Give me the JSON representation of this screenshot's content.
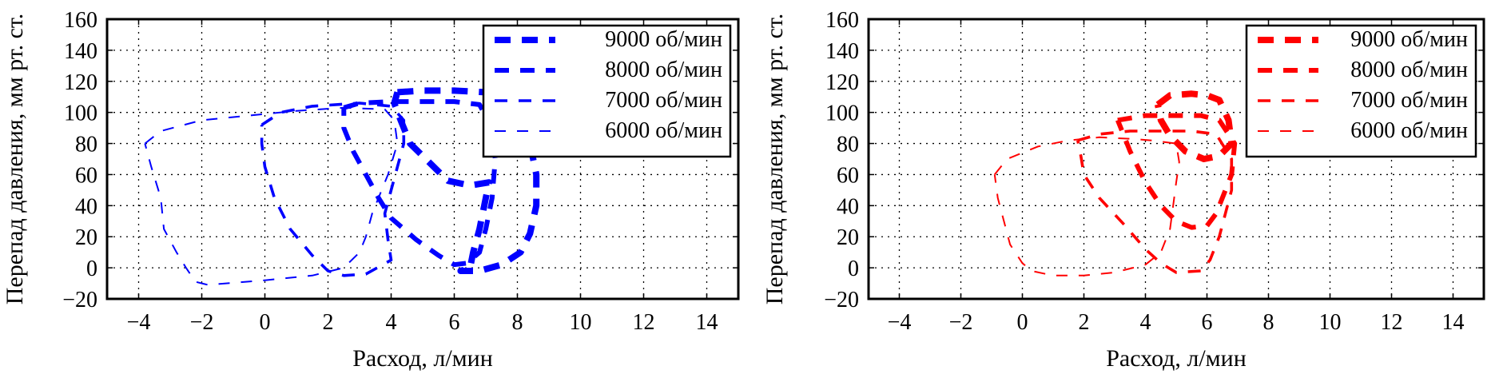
{
  "chart_data": [
    {
      "type": "line",
      "color": "#0000ff",
      "xlabel": "Расход, л/мин",
      "ylabel": "Перепад давления, мм рт. ст.",
      "xlim": [
        -5,
        15
      ],
      "ylim": [
        -20,
        160
      ],
      "x_ticks": [
        "−4",
        "−2",
        "0",
        "2",
        "4",
        "6",
        "8",
        "10",
        "12",
        "14"
      ],
      "y_ticks": [
        "160",
        "140",
        "120",
        "100",
        "80",
        "60",
        "40",
        "20",
        "0",
        "−20"
      ],
      "grid": true,
      "legend_position": "top-right",
      "series": [
        {
          "name": "9000 об/мин",
          "points": [
            [
              4.2,
              113
            ],
            [
              5,
              114
            ],
            [
              6,
              114
            ],
            [
              7,
              113
            ],
            [
              7.6,
              110
            ],
            [
              8,
              100
            ],
            [
              8.4,
              80
            ],
            [
              8.6,
              60
            ],
            [
              8.6,
              40
            ],
            [
              8.4,
              22
            ],
            [
              8.1,
              10
            ],
            [
              7.5,
              2
            ],
            [
              6.8,
              -2
            ],
            [
              6.2,
              -2
            ],
            [
              6.5,
              0
            ],
            [
              6.6,
              10
            ],
            [
              6.8,
              25
            ],
            [
              7.0,
              45
            ],
            [
              7.1,
              55
            ],
            [
              6.5,
              53
            ],
            [
              5.8,
              56
            ],
            [
              5.2,
              68
            ],
            [
              4.6,
              80
            ],
            [
              4.3,
              95
            ],
            [
              4.1,
              106
            ],
            [
              4.2,
              113
            ]
          ]
        },
        {
          "name": "8000 об/мин",
          "points": [
            [
              2.5,
              103
            ],
            [
              3,
              106
            ],
            [
              4,
              107
            ],
            [
              5,
              107
            ],
            [
              6,
              107
            ],
            [
              6.8,
              105
            ],
            [
              7.2,
              90
            ],
            [
              7.3,
              70
            ],
            [
              7.2,
              45
            ],
            [
              7,
              25
            ],
            [
              6.8,
              10
            ],
            [
              6.4,
              3
            ],
            [
              6,
              2
            ],
            [
              5.5,
              8
            ],
            [
              4.8,
              18
            ],
            [
              4,
              32
            ],
            [
              3.6,
              45
            ],
            [
              3.2,
              60
            ],
            [
              2.8,
              75
            ],
            [
              2.5,
              90
            ],
            [
              2.5,
              103
            ]
          ]
        },
        {
          "name": "7000 об/мин",
          "points": [
            [
              -0.1,
              92
            ],
            [
              0.5,
              100
            ],
            [
              1.5,
              104
            ],
            [
              3,
              106
            ],
            [
              4,
              104
            ],
            [
              4.4,
              95
            ],
            [
              4.4,
              80
            ],
            [
              4.2,
              65
            ],
            [
              4,
              50
            ],
            [
              3.8,
              35
            ],
            [
              3.9,
              18
            ],
            [
              4.0,
              5
            ],
            [
              3.2,
              -4
            ],
            [
              2.5,
              -5
            ],
            [
              2,
              -2
            ],
            [
              1.5,
              8
            ],
            [
              0.8,
              25
            ],
            [
              0.3,
              45
            ],
            [
              0,
              65
            ],
            [
              -0.1,
              80
            ],
            [
              -0.1,
              92
            ]
          ]
        },
        {
          "name": "6000 об/мин",
          "points": [
            [
              -3.8,
              80
            ],
            [
              -3.3,
              88
            ],
            [
              -2,
              95
            ],
            [
              -0.5,
              98
            ],
            [
              1,
              101
            ],
            [
              2.5,
              103
            ],
            [
              3.8,
              102
            ],
            [
              4.1,
              95
            ],
            [
              4.2,
              80
            ],
            [
              3.9,
              60
            ],
            [
              3.6,
              45
            ],
            [
              3.4,
              35
            ],
            [
              3.2,
              20
            ],
            [
              3,
              10
            ],
            [
              2.5,
              0
            ],
            [
              1.5,
              -5
            ],
            [
              0,
              -8
            ],
            [
              -1.8,
              -11
            ],
            [
              -2.2,
              -9
            ],
            [
              -2.5,
              0
            ],
            [
              -2.8,
              10
            ],
            [
              -3.2,
              25
            ],
            [
              -3.3,
              45
            ],
            [
              -3.6,
              65
            ],
            [
              -3.8,
              80
            ]
          ]
        }
      ]
    },
    {
      "type": "line",
      "color": "#ff0000",
      "xlabel": "Расход, л/мин",
      "ylabel": "Перепад давления, мм рт. ст.",
      "xlim": [
        -5,
        15
      ],
      "ylim": [
        -20,
        160
      ],
      "x_ticks": [
        "−4",
        "−2",
        "0",
        "2",
        "4",
        "6",
        "8",
        "10",
        "12",
        "14"
      ],
      "y_ticks": [
        "160",
        "140",
        "120",
        "100",
        "80",
        "60",
        "40",
        "20",
        "0",
        "−20"
      ],
      "grid": true,
      "legend_position": "top-right",
      "series": [
        {
          "name": "9000 об/мин",
          "points": [
            [
              4.4,
              105
            ],
            [
              4.8,
              111
            ],
            [
              5.5,
              112
            ],
            [
              6,
              111
            ],
            [
              6.4,
              108
            ],
            [
              6.7,
              95
            ],
            [
              6.8,
              80
            ],
            [
              6.4,
              72
            ],
            [
              5.9,
              70
            ],
            [
              5.3,
              75
            ],
            [
              4.8,
              85
            ],
            [
              4.5,
              95
            ],
            [
              4.4,
              105
            ]
          ]
        },
        {
          "name": "8000 об/мин",
          "points": [
            [
              3.1,
              95
            ],
            [
              4,
              98
            ],
            [
              5,
              98
            ],
            [
              5.8,
              98
            ],
            [
              6.4,
              95
            ],
            [
              6.9,
              80
            ],
            [
              6.8,
              60
            ],
            [
              6.5,
              45
            ],
            [
              6.3,
              35
            ],
            [
              6,
              27
            ],
            [
              5.5,
              26
            ],
            [
              5,
              30
            ],
            [
              4.5,
              40
            ],
            [
              4,
              55
            ],
            [
              3.5,
              75
            ],
            [
              3.2,
              90
            ],
            [
              3.1,
              95
            ]
          ]
        },
        {
          "name": "7000 об/мин",
          "points": [
            [
              1.8,
              82
            ],
            [
              2.5,
              86
            ],
            [
              3.5,
              88
            ],
            [
              4.5,
              88
            ],
            [
              5.5,
              88
            ],
            [
              6.3,
              86
            ],
            [
              6.8,
              70
            ],
            [
              6.8,
              50
            ],
            [
              6.6,
              35
            ],
            [
              6.4,
              20
            ],
            [
              6.1,
              5
            ],
            [
              5.8,
              -2
            ],
            [
              5,
              -3
            ],
            [
              4.5,
              3
            ],
            [
              4,
              12
            ],
            [
              3.3,
              28
            ],
            [
              2.5,
              45
            ],
            [
              2,
              60
            ],
            [
              1.9,
              72
            ],
            [
              1.8,
              82
            ]
          ]
        },
        {
          "name": "6000 об/мин",
          "points": [
            [
              -0.9,
              60
            ],
            [
              -0.5,
              70
            ],
            [
              0.5,
              78
            ],
            [
              1.5,
              82
            ],
            [
              2.5,
              84
            ],
            [
              3.5,
              83
            ],
            [
              4.2,
              82
            ],
            [
              5,
              80
            ],
            [
              5.1,
              68
            ],
            [
              5,
              55
            ],
            [
              4.9,
              40
            ],
            [
              4.8,
              25
            ],
            [
              4.5,
              10
            ],
            [
              4,
              2
            ],
            [
              3,
              -3
            ],
            [
              2,
              -5
            ],
            [
              1,
              -5
            ],
            [
              0.3,
              -2
            ],
            [
              0,
              3
            ],
            [
              -0.4,
              15
            ],
            [
              -0.6,
              30
            ],
            [
              -0.8,
              45
            ],
            [
              -0.9,
              60
            ]
          ]
        }
      ]
    }
  ]
}
